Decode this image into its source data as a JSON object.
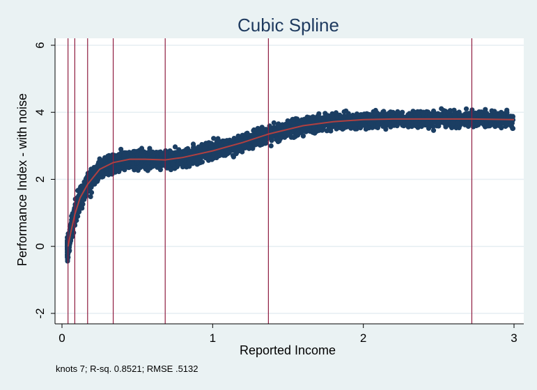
{
  "chart_data": {
    "type": "scatter",
    "title": "Cubic Spline",
    "xlabel": "Reported Income",
    "ylabel": "Performance Index - with noise",
    "xlim": [
      0,
      3
    ],
    "ylim": [
      -2,
      6
    ],
    "xticks": [
      "0",
      "1",
      "2",
      "3"
    ],
    "yticks": [
      "-2",
      "0",
      "2",
      "4",
      "6"
    ],
    "xtick_values": [
      0,
      1,
      2,
      3
    ],
    "ytick_values": [
      -2,
      0,
      2,
      4,
      6
    ],
    "grid": true,
    "knots": [
      0.04,
      0.085,
      0.17,
      0.34,
      0.685,
      1.37,
      2.72
    ],
    "spline_fit": {
      "x": [
        0.04,
        0.06,
        0.085,
        0.12,
        0.17,
        0.25,
        0.34,
        0.45,
        0.55,
        0.685,
        0.8,
        1.0,
        1.2,
        1.37,
        1.6,
        1.8,
        2.0,
        2.2,
        2.4,
        2.72,
        3.0
      ],
      "y": [
        0.0,
        0.45,
        0.95,
        1.45,
        1.85,
        2.3,
        2.5,
        2.6,
        2.6,
        2.58,
        2.65,
        2.85,
        3.1,
        3.35,
        3.6,
        3.72,
        3.78,
        3.8,
        3.8,
        3.8,
        3.78
      ]
    },
    "points_series": "Performance Index - with noise",
    "footnote": "knots 7; R-sq. 0.8521; RMSE  .5132",
    "colors": {
      "background": "#eaf2f3",
      "plot_area": "#ffffff",
      "points": "#1b3e63",
      "spline": "#b04040",
      "knot_lines": "#8e1b3f",
      "grid": "#e6eef2",
      "title": "#1e3a5f"
    }
  }
}
